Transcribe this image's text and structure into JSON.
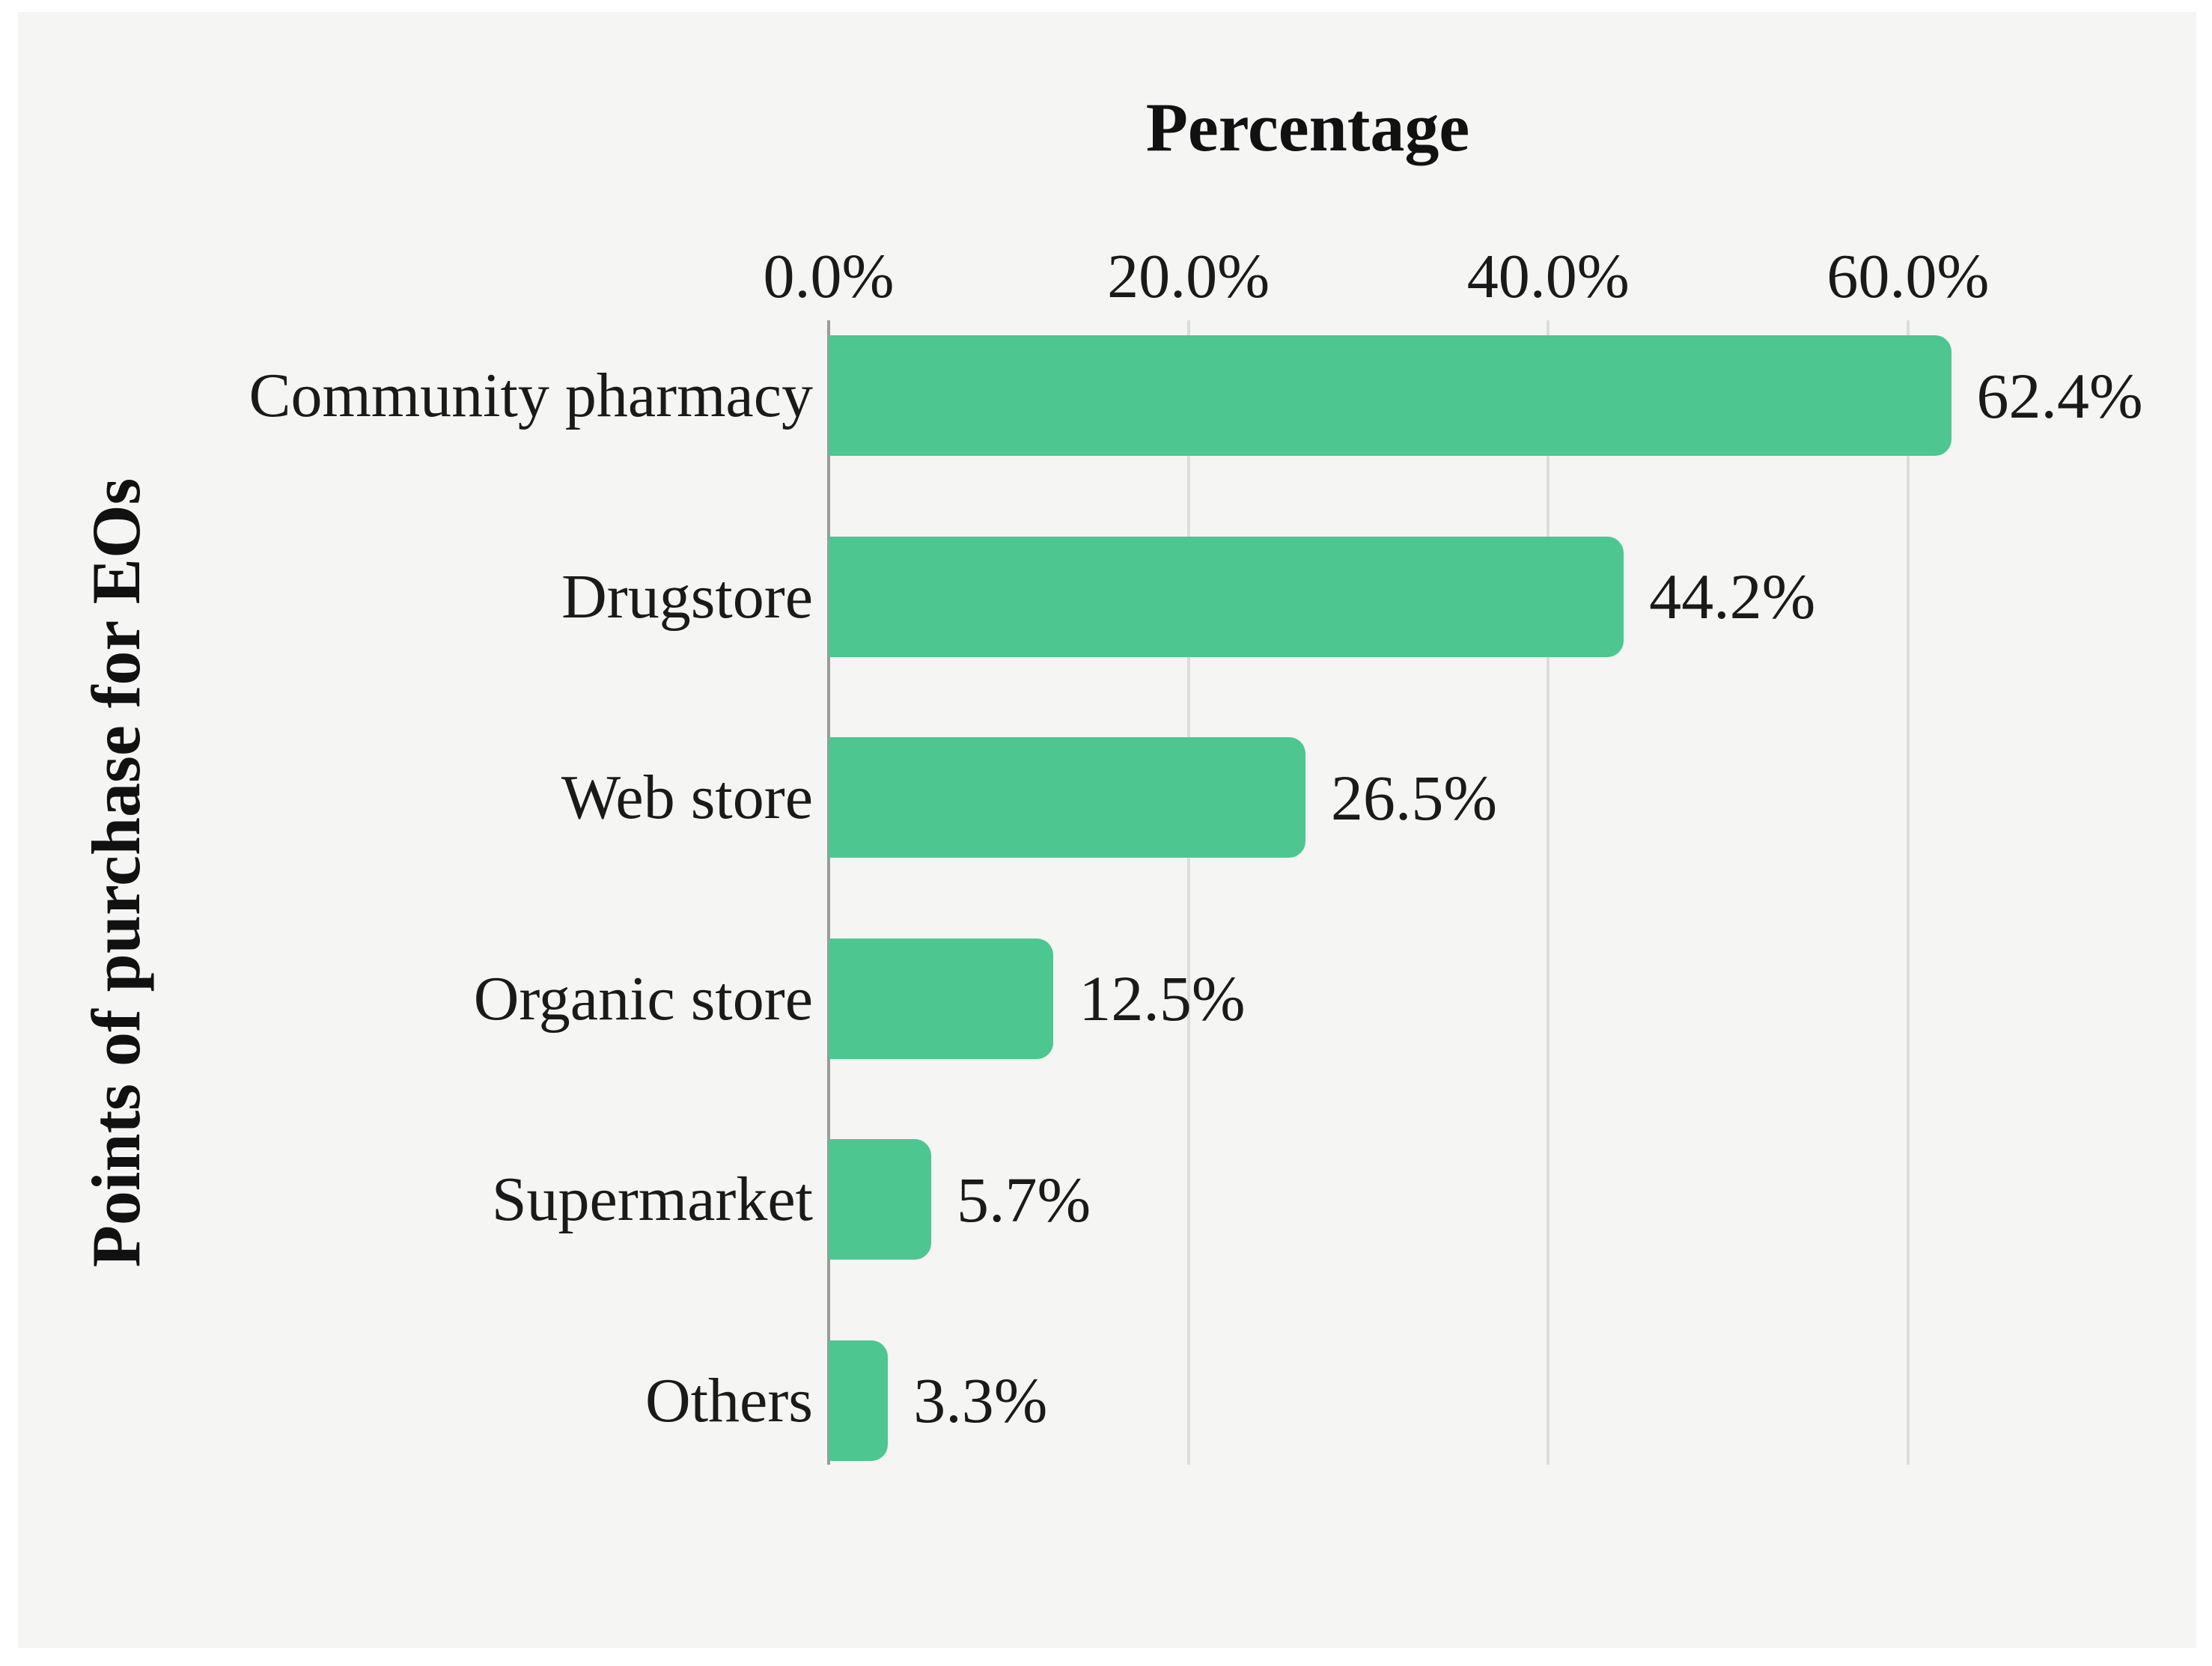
{
  "chart_data": {
    "type": "bar",
    "orientation": "horizontal",
    "title": "Percentage",
    "xlabel": "Percentage",
    "ylabel": "Points of purchase for EOs",
    "categories": [
      "Community pharmacy",
      "Drugstore",
      "Web store",
      "Organic store",
      "Supermarket",
      "Others"
    ],
    "values": [
      62.4,
      44.2,
      26.5,
      12.5,
      5.7,
      3.3
    ],
    "value_labels": [
      "62.4%",
      "44.2%",
      "26.5%",
      "12.5%",
      "5.7%",
      "3.3%"
    ],
    "x_ticks": [
      {
        "label": "0.0%",
        "value": 0
      },
      {
        "label": "20.0%",
        "value": 20
      },
      {
        "label": "40.0%",
        "value": 40
      },
      {
        "label": "60.0%",
        "value": 60
      }
    ],
    "xlim": [
      0,
      75.86
    ],
    "grid": true,
    "legend": false,
    "tick_label_position": "top",
    "colors": {
      "bar": "#4dc690",
      "panel_background": "#f5f5f3",
      "page_background": "#ffffff",
      "gridline": "#dcdcda",
      "axis_line": "#9b9b9b",
      "text": "#1a1a1a"
    }
  }
}
